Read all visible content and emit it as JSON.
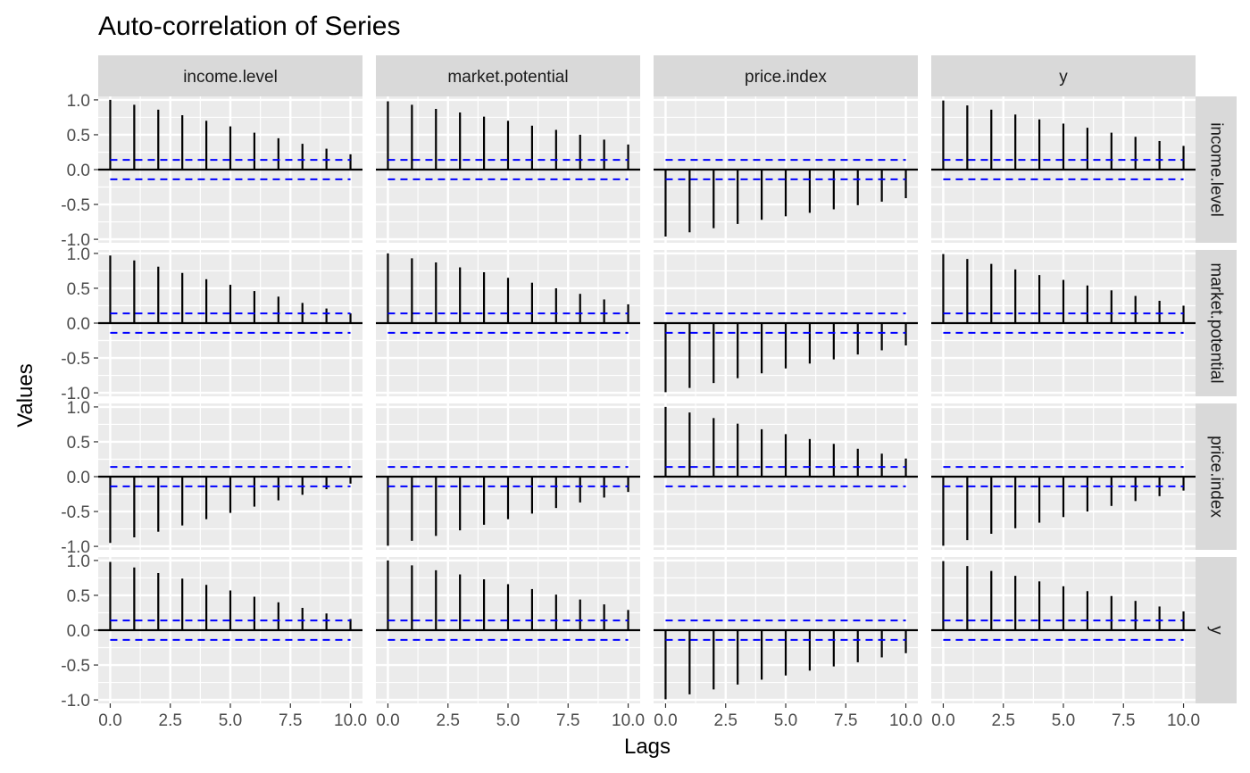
{
  "chart_data": {
    "type": "bar",
    "subtype": "acf-facet-grid",
    "title": "Auto-correlation of Series",
    "xlabel": "Lags",
    "ylabel": "Values",
    "column_facets": [
      "income.level",
      "market.potential",
      "price.index",
      "y"
    ],
    "row_facets": [
      "income.level",
      "market.potential",
      "price.index",
      "y"
    ],
    "row_strip_text": [
      "income.level",
      "market.potential",
      "price.index",
      "y"
    ],
    "xlim": [
      -0.5,
      10.5
    ],
    "ylim": [
      -1.05,
      1.05
    ],
    "x_ticks": [
      0,
      2.5,
      5,
      7.5,
      10
    ],
    "x_tick_labels": [
      "0.0",
      "2.5",
      "5.0",
      "7.5",
      "10.0"
    ],
    "y_ticks": [
      -1,
      -0.5,
      0,
      0.5,
      1
    ],
    "y_tick_labels": [
      "-1.0",
      "-0.5",
      "0.0",
      "0.5",
      "1.0"
    ],
    "lags": [
      0,
      1,
      2,
      3,
      4,
      5,
      6,
      7,
      8,
      9,
      10
    ],
    "confidence_bound": 0.14,
    "bar_color": "#000000",
    "bound_color": "#0000ff",
    "panel_background": "#ebebeb",
    "strip_background": "#d9d9d9",
    "grid": true,
    "panels": [
      [
        {
          "values": [
            1.0,
            0.93,
            0.86,
            0.78,
            0.7,
            0.62,
            0.53,
            0.45,
            0.37,
            0.3,
            0.22
          ]
        },
        {
          "values": [
            0.98,
            0.93,
            0.87,
            0.82,
            0.76,
            0.7,
            0.63,
            0.57,
            0.5,
            0.43,
            0.36
          ]
        },
        {
          "values": [
            -0.96,
            -0.9,
            -0.84,
            -0.78,
            -0.72,
            -0.67,
            -0.62,
            -0.57,
            -0.51,
            -0.46,
            -0.41
          ]
        },
        {
          "values": [
            0.99,
            0.92,
            0.86,
            0.79,
            0.72,
            0.66,
            0.6,
            0.53,
            0.47,
            0.41,
            0.34
          ]
        }
      ],
      [
        {
          "values": [
            0.97,
            0.9,
            0.81,
            0.72,
            0.63,
            0.55,
            0.46,
            0.38,
            0.29,
            0.21,
            0.14
          ]
        },
        {
          "values": [
            1.0,
            0.93,
            0.87,
            0.8,
            0.73,
            0.65,
            0.58,
            0.5,
            0.42,
            0.34,
            0.27
          ]
        },
        {
          "values": [
            -0.99,
            -0.93,
            -0.86,
            -0.79,
            -0.72,
            -0.65,
            -0.58,
            -0.52,
            -0.45,
            -0.39,
            -0.32
          ]
        },
        {
          "values": [
            0.99,
            0.92,
            0.85,
            0.77,
            0.69,
            0.62,
            0.54,
            0.47,
            0.39,
            0.32,
            0.25
          ]
        }
      ],
      [
        {
          "values": [
            -0.95,
            -0.87,
            -0.79,
            -0.7,
            -0.61,
            -0.52,
            -0.43,
            -0.34,
            -0.26,
            -0.18,
            -0.1
          ]
        },
        {
          "values": [
            -0.99,
            -0.92,
            -0.85,
            -0.77,
            -0.69,
            -0.61,
            -0.53,
            -0.45,
            -0.37,
            -0.3,
            -0.22
          ]
        },
        {
          "values": [
            1.0,
            0.92,
            0.84,
            0.76,
            0.68,
            0.61,
            0.54,
            0.47,
            0.4,
            0.33,
            0.26
          ]
        },
        {
          "values": [
            -0.99,
            -0.91,
            -0.82,
            -0.74,
            -0.66,
            -0.58,
            -0.5,
            -0.42,
            -0.35,
            -0.28,
            -0.2
          ]
        }
      ],
      [
        {
          "values": [
            0.98,
            0.9,
            0.82,
            0.74,
            0.65,
            0.57,
            0.48,
            0.4,
            0.32,
            0.24,
            0.16
          ]
        },
        {
          "values": [
            1.0,
            0.93,
            0.86,
            0.8,
            0.73,
            0.66,
            0.59,
            0.51,
            0.44,
            0.37,
            0.29
          ]
        },
        {
          "values": [
            -0.99,
            -0.92,
            -0.85,
            -0.78,
            -0.71,
            -0.65,
            -0.58,
            -0.52,
            -0.46,
            -0.39,
            -0.33
          ]
        },
        {
          "values": [
            0.99,
            0.92,
            0.85,
            0.78,
            0.7,
            0.63,
            0.56,
            0.49,
            0.42,
            0.34,
            0.27
          ]
        }
      ]
    ]
  }
}
